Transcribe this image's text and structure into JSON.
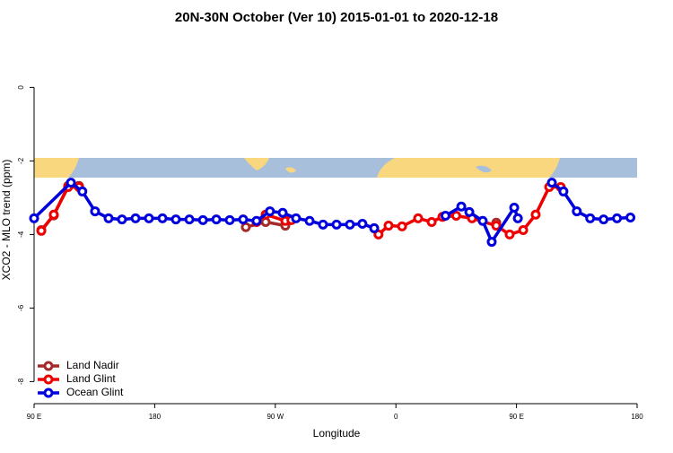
{
  "chart_data": {
    "type": "line",
    "title": "20N-30N October (Ver 10)   2015-01-01 to 2020-12-18",
    "x_label": "Longitude",
    "y_label": "XCO2 - MLO trend (ppm)",
    "xlim": [
      90,
      540
    ],
    "ylim": [
      -8.6,
      1.4
    ],
    "xticks": [
      {
        "value": 90,
        "label": "90 E"
      },
      180,
      {
        "value": 270,
        "label": "90 W"
      },
      {
        "value": 360,
        "label": "0"
      },
      {
        "value": 450,
        "label": "90 E"
      },
      {
        "value": 540,
        "label": "180"
      }
    ],
    "yticks": [
      0,
      -2,
      -4,
      -6,
      -8
    ],
    "legend": "bottom-left",
    "series": [
      {
        "name": "Land Nadir",
        "color": "#a52a2a",
        "x": [
          95.4,
          104.7,
          115.4,
          123.5,
          null,
          248,
          262.8,
          277.5,
          282,
          null,
          434.9
        ],
        "values": [
          -3.88,
          -3.48,
          -2.68,
          -2.68,
          null,
          -3.8,
          -3.66,
          -3.76,
          -3.6,
          null,
          -3.68
        ]
      },
      {
        "name": "Land Glint",
        "color": "#ee0000",
        "x": [
          95.4,
          104.7,
          115.4,
          123.5,
          null,
          256,
          262.8,
          277.5,
          282,
          null,
          347,
          354.5,
          364.6,
          376.6,
          386.7,
          394.7,
          405,
          416.8,
          434.9,
          444.9,
          455,
          464.3,
          474.4,
          483
        ],
        "values": [
          -3.9,
          -3.46,
          -2.71,
          -2.71,
          null,
          -3.66,
          -3.46,
          -3.63,
          -3.61,
          null,
          -4.0,
          -3.76,
          -3.78,
          -3.56,
          -3.66,
          -3.52,
          -3.49,
          -3.56,
          -3.76,
          -4.0,
          -3.88,
          -3.46,
          -2.71,
          -2.71
        ]
      },
      {
        "name": "Ocean Glint",
        "color": "#0000dd",
        "x": [
          90,
          117.5,
          126,
          135.5,
          145.6,
          155.6,
          165.7,
          175.7,
          185.8,
          195.8,
          205.9,
          216,
          226,
          236,
          246,
          256,
          266,
          275.5,
          285.5,
          295.6,
          305.6,
          315.7,
          325.7,
          335,
          343.8,
          null,
          397,
          408.8,
          414.8,
          424.8,
          431.5,
          448.3,
          451,
          null,
          476.4,
          485,
          495,
          505,
          515,
          525,
          535
        ],
        "values": [
          -3.56,
          -2.59,
          -2.83,
          -3.37,
          -3.56,
          -3.59,
          -3.56,
          -3.56,
          -3.56,
          -3.59,
          -3.59,
          -3.61,
          -3.59,
          -3.61,
          -3.59,
          -3.63,
          -3.37,
          -3.41,
          -3.56,
          -3.63,
          -3.73,
          -3.73,
          -3.73,
          -3.71,
          -3.83,
          null,
          -3.49,
          -3.24,
          -3.39,
          -3.63,
          -4.2,
          -3.27,
          -3.56,
          null,
          -2.59,
          -2.83,
          -3.37,
          -3.56,
          -3.59,
          -3.56,
          -3.54
        ]
      }
    ]
  }
}
